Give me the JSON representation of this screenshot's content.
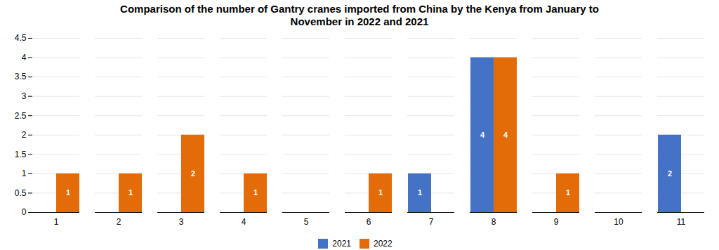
{
  "chart_data": {
    "type": "bar",
    "title": "Comparison of the number of Gantry cranes imported from China by the Kenya from January to\nNovember in 2022 and 2021",
    "categories": [
      "1",
      "2",
      "3",
      "4",
      "5",
      "6",
      "7",
      "8",
      "9",
      "10",
      "11"
    ],
    "series": [
      {
        "name": "2021",
        "color": "#4472C4",
        "values": [
          0,
          0,
          0,
          0,
          0,
          0,
          1,
          4,
          0,
          0,
          2
        ],
        "value_labels": [
          null,
          null,
          null,
          null,
          null,
          null,
          "1",
          "4",
          null,
          null,
          "2"
        ]
      },
      {
        "name": "2022",
        "color": "#E36C09",
        "values": [
          1,
          1,
          2,
          1,
          0,
          1,
          0,
          4,
          1,
          0,
          0
        ],
        "value_labels": [
          "1",
          "1",
          "2",
          "1",
          null,
          "1",
          null,
          "4",
          "1",
          null,
          null
        ]
      }
    ],
    "ylim": [
      0,
      4.5
    ],
    "yticks": [
      0,
      0.5,
      1,
      1.5,
      2,
      2.5,
      3,
      3.5,
      4,
      4.5
    ],
    "grid": true,
    "data_labels": true,
    "legend": "bottom"
  }
}
